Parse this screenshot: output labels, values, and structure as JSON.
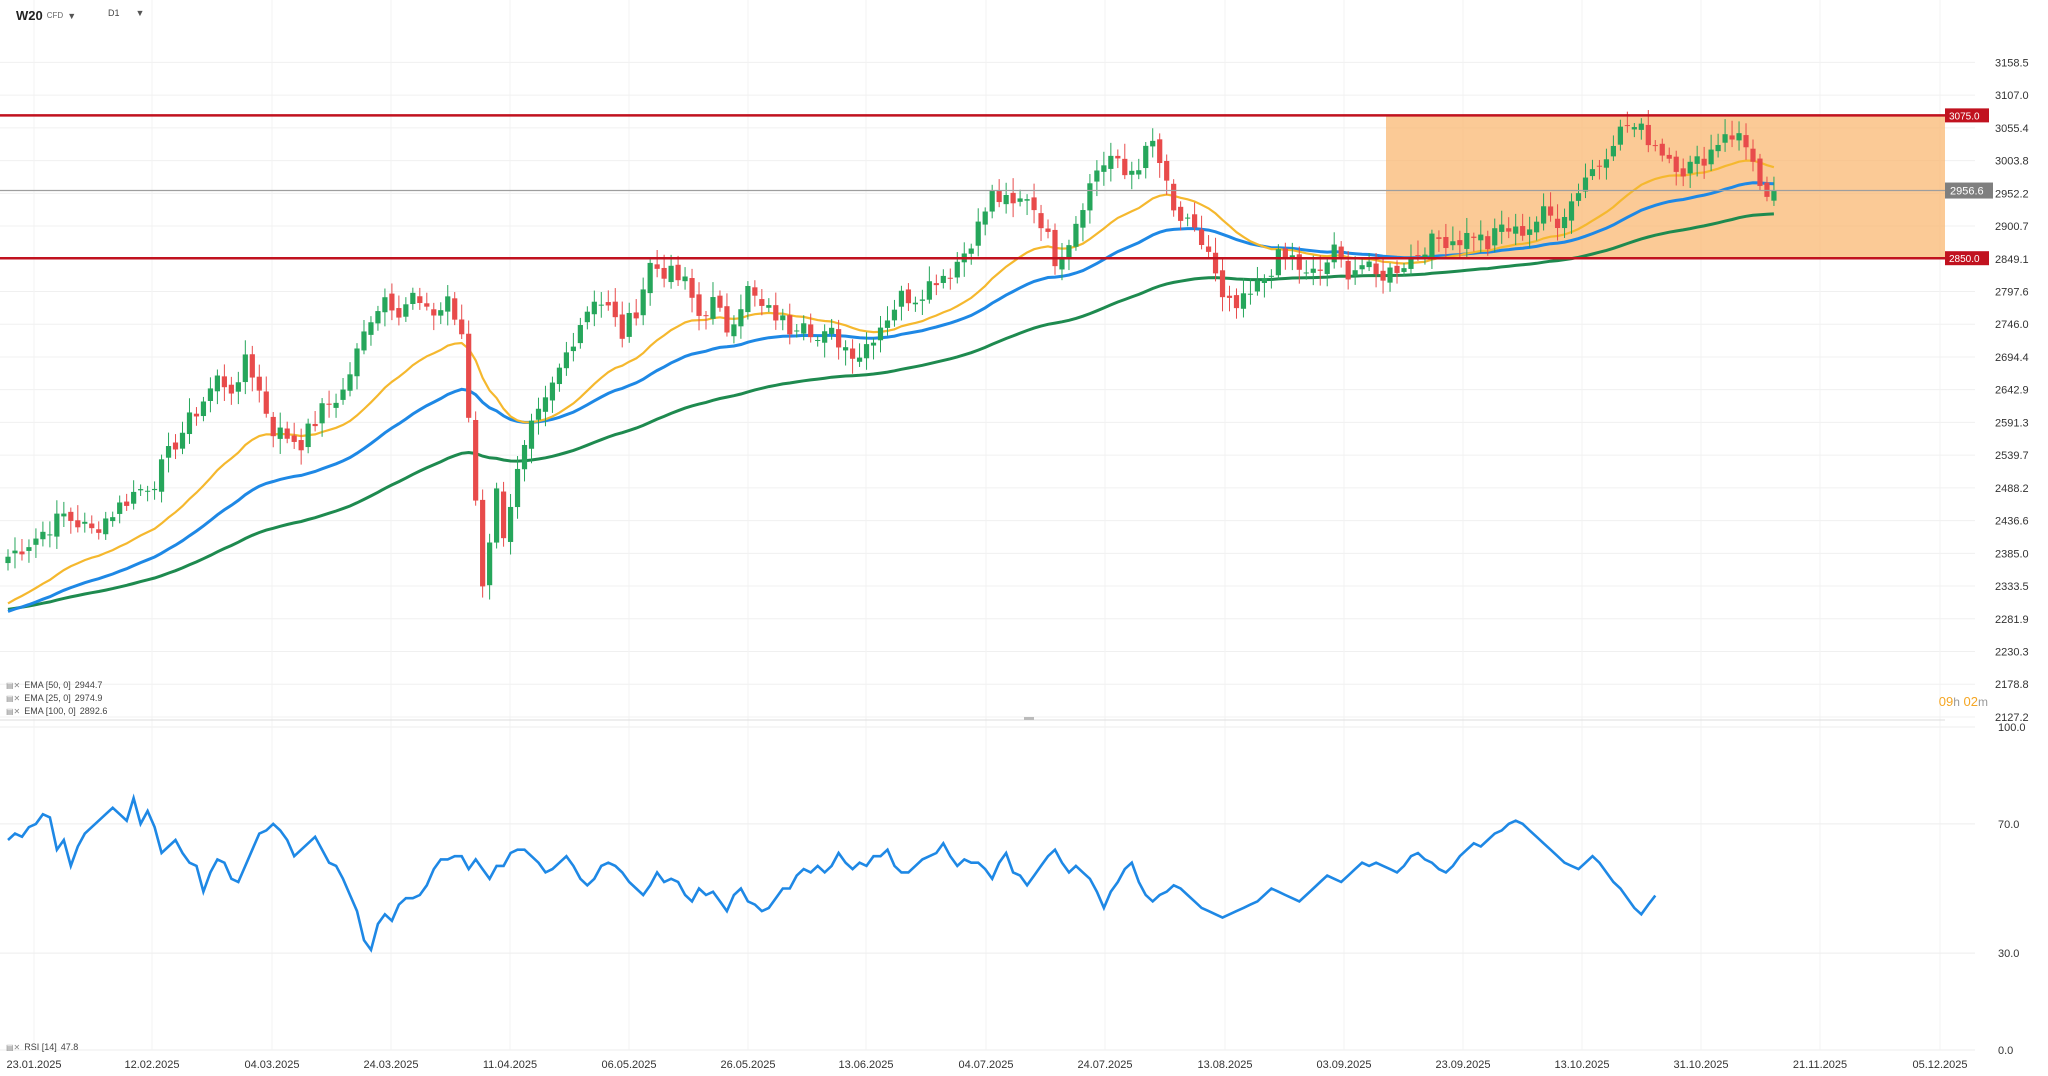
{
  "header": {
    "symbol": "W20",
    "symbol_sub": "CFD",
    "timeframe": "D1"
  },
  "countdown": {
    "hours": "09",
    "h_unit": "h",
    "minutes": "02",
    "m_unit": "m"
  },
  "indicators": [
    {
      "label": "EMA [50, 0]",
      "value": "2944.7",
      "color": "#1e88e5"
    },
    {
      "label": "EMA [25, 0]",
      "value": "2974.9",
      "color": "#f5b82e"
    },
    {
      "label": "EMA [100, 0]",
      "value": "2892.6",
      "color": "#1e8a4f"
    }
  ],
  "rsi_label": {
    "label": "RSI [14]",
    "value": "47.8"
  },
  "colors": {
    "up": "#26a65b",
    "down": "#e84b4b",
    "resistance": "#c1121f",
    "zone": "#f9b46a",
    "ema25": "#f5b82e",
    "ema50": "#1e88e5",
    "ema100": "#1e8a4f",
    "rsi": "#1e88e5",
    "price_line": "#9e9e9e"
  },
  "chart_data": [
    {
      "type": "candlestick",
      "y_ticks": [
        "3158.5",
        "3107.0",
        "3055.4",
        "3003.8",
        "2952.2",
        "2900.7",
        "2849.1",
        "2797.6",
        "2746.0",
        "2694.4",
        "2642.9",
        "2591.3",
        "2539.7",
        "2488.2",
        "2436.6",
        "2385.0",
        "2333.5",
        "2281.9",
        "2230.3",
        "2178.8",
        "2127.2"
      ],
      "x_ticks": [
        "23.01.2025",
        "12.02.2025",
        "04.03.2025",
        "24.03.2025",
        "11.04.2025",
        "06.05.2025",
        "26.05.2025",
        "13.06.2025",
        "04.07.2025",
        "24.07.2025",
        "13.08.2025",
        "03.09.2025",
        "23.09.2025",
        "13.10.2025",
        "31.10.2025",
        "21.11.2025",
        "05.12.2025"
      ],
      "ylim": [
        2127.2,
        3184.3
      ],
      "levels": [
        {
          "name": "resistance",
          "value": 3075.0,
          "label": "3075.0"
        },
        {
          "name": "support",
          "value": 2850.0,
          "label": "2850.0"
        }
      ],
      "current_price": {
        "value": 2956.6,
        "label": "2956.6"
      },
      "zone": {
        "from": 2850.0,
        "to": 3075.0,
        "start_date": "03.09.2025"
      },
      "path_points": [
        [
          0,
          2380
        ],
        [
          4,
          2410
        ],
        [
          8,
          2445
        ],
        [
          12,
          2420
        ],
        [
          16,
          2460
        ],
        [
          18,
          2480
        ],
        [
          21,
          2500
        ],
        [
          24,
          2560
        ],
        [
          27,
          2610
        ],
        [
          30,
          2660
        ],
        [
          33,
          2640
        ],
        [
          34,
          2700
        ],
        [
          36,
          2640
        ],
        [
          38,
          2580
        ],
        [
          42,
          2560
        ],
        [
          45,
          2610
        ],
        [
          48,
          2640
        ],
        [
          50,
          2700
        ],
        [
          52,
          2760
        ],
        [
          54,
          2790
        ],
        [
          56,
          2770
        ],
        [
          58,
          2790
        ],
        [
          60,
          2760
        ],
        [
          62,
          2770
        ],
        [
          63,
          2790
        ],
        [
          65,
          2720
        ],
        [
          66,
          2600
        ],
        [
          67,
          2470
        ],
        [
          68,
          2340
        ],
        [
          70,
          2480
        ],
        [
          71,
          2420
        ],
        [
          73,
          2510
        ],
        [
          75,
          2580
        ],
        [
          77,
          2620
        ],
        [
          80,
          2700
        ],
        [
          82,
          2750
        ],
        [
          84,
          2790
        ],
        [
          86,
          2770
        ],
        [
          88,
          2730
        ],
        [
          90,
          2770
        ],
        [
          92,
          2840
        ],
        [
          94,
          2830
        ],
        [
          97,
          2810
        ],
        [
          99,
          2760
        ],
        [
          101,
          2780
        ],
        [
          103,
          2740
        ],
        [
          106,
          2800
        ],
        [
          108,
          2770
        ],
        [
          110,
          2760
        ],
        [
          112,
          2740
        ],
        [
          114,
          2760
        ],
        [
          116,
          2720
        ],
        [
          118,
          2730
        ],
        [
          120,
          2710
        ],
        [
          122,
          2700
        ],
        [
          124,
          2730
        ],
        [
          126,
          2760
        ],
        [
          128,
          2790
        ],
        [
          130,
          2790
        ],
        [
          133,
          2820
        ],
        [
          135,
          2830
        ],
        [
          137,
          2860
        ],
        [
          139,
          2900
        ],
        [
          141,
          2950
        ],
        [
          144,
          2930
        ],
        [
          146,
          2950
        ],
        [
          148,
          2910
        ],
        [
          150,
          2850
        ],
        [
          152,
          2880
        ],
        [
          154,
          2940
        ],
        [
          156,
          2990
        ],
        [
          158,
          3010
        ],
        [
          160,
          2980
        ],
        [
          162,
          3000
        ],
        [
          164,
          3030
        ],
        [
          165,
          3000
        ],
        [
          167,
          2920
        ],
        [
          169,
          2900
        ],
        [
          172,
          2860
        ],
        [
          174,
          2780
        ],
        [
          176,
          2770
        ],
        [
          178,
          2790
        ],
        [
          180,
          2820
        ],
        [
          182,
          2850
        ],
        [
          184,
          2850
        ],
        [
          186,
          2820
        ],
        [
          188,
          2830
        ],
        [
          190,
          2860
        ],
        [
          192,
          2830
        ],
        [
          194,
          2840
        ],
        [
          196,
          2820
        ],
        [
          198,
          2830
        ],
        [
          201,
          2850
        ],
        [
          203,
          2870
        ],
        [
          205,
          2880
        ],
        [
          208,
          2880
        ],
        [
          210,
          2890
        ],
        [
          212,
          2870
        ],
        [
          214,
          2900
        ],
        [
          216,
          2890
        ],
        [
          218,
          2900
        ],
        [
          220,
          2920
        ],
        [
          222,
          2910
        ],
        [
          224,
          2940
        ],
        [
          226,
          2980
        ],
        [
          228,
          3000
        ],
        [
          230,
          3040
        ],
        [
          232,
          3060
        ],
        [
          234,
          3050
        ],
        [
          236,
          3030
        ],
        [
          238,
          3010
        ],
        [
          240,
          2990
        ],
        [
          242,
          3000
        ],
        [
          244,
          3020
        ],
        [
          246,
          3050
        ],
        [
          248,
          3040
        ],
        [
          250,
          3010
        ],
        [
          251,
          2960
        ],
        [
          252,
          2935
        ],
        [
          253,
          2956.6
        ]
      ]
    },
    {
      "type": "line",
      "name": "RSI [14]",
      "ylim": [
        0,
        100
      ],
      "y_ticks": [
        "100.0",
        "70.0",
        "30.0",
        "0.0"
      ],
      "values": [
        65,
        67,
        66,
        69,
        70,
        73,
        72,
        62,
        65,
        57,
        63,
        67,
        69,
        71,
        73,
        75,
        73,
        71,
        78,
        70,
        74,
        69,
        61,
        63,
        65,
        61,
        58,
        57,
        49,
        55,
        59,
        58,
        53,
        52,
        57,
        62,
        67,
        68,
        70,
        68,
        65,
        60,
        62,
        64,
        66,
        62,
        58,
        57,
        53,
        48,
        43,
        34,
        31,
        39,
        42,
        40,
        45,
        47,
        47,
        48,
        51,
        56,
        59,
        59,
        60,
        60,
        56,
        59,
        56,
        53,
        57,
        57,
        61,
        62,
        62,
        60,
        58,
        55,
        56,
        58,
        60,
        57,
        53,
        51,
        53,
        57,
        58,
        57,
        55,
        52,
        50,
        48,
        51,
        55,
        52,
        53,
        52,
        48,
        46,
        50,
        48,
        49,
        46,
        43,
        48,
        50,
        46,
        45,
        43,
        44,
        47,
        50,
        50,
        54,
        56,
        55,
        57,
        55,
        57,
        61,
        58,
        56,
        58,
        57,
        60,
        60,
        62,
        57,
        55,
        55,
        57,
        59,
        60,
        61,
        64,
        60,
        57,
        59,
        58,
        58,
        56,
        53,
        58,
        61,
        55,
        54,
        51,
        54,
        57,
        60,
        62,
        58,
        55,
        57,
        55,
        53,
        49,
        44,
        49,
        52,
        56,
        58,
        52,
        48,
        46,
        48,
        49,
        51,
        50,
        48,
        46,
        44,
        43,
        42,
        41,
        42,
        43,
        44,
        45,
        46,
        48,
        50,
        49,
        48,
        47,
        46,
        48,
        50,
        52,
        54,
        53,
        52,
        54,
        56,
        58,
        57,
        58,
        57,
        56,
        55,
        57,
        60,
        61,
        59,
        58,
        56,
        55,
        57,
        60,
        62,
        64,
        63,
        65,
        67,
        68,
        70,
        71,
        70,
        68,
        66,
        64,
        62,
        60,
        58,
        57,
        56,
        58,
        60,
        58,
        55,
        52,
        50,
        47,
        44,
        42,
        45,
        47.8
      ]
    }
  ]
}
